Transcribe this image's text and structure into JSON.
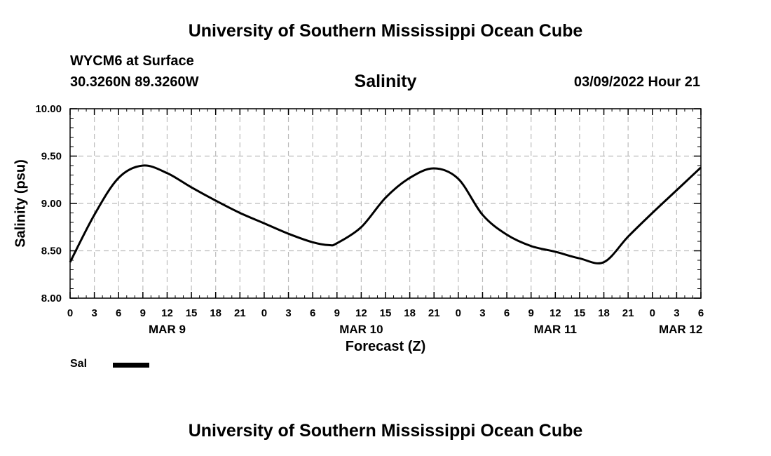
{
  "page": {
    "title_top": "University of Southern Mississippi Ocean Cube",
    "title_bottom": "University of Southern Mississippi Ocean Cube",
    "station": "WYCM6 at Surface",
    "coords": "30.3260N  89.3260W",
    "product": "Salinity",
    "datetime": "03/09/2022 Hour 21"
  },
  "chart_data": {
    "type": "line",
    "title": "Salinity",
    "xlabel": "Forecast (Z)",
    "ylabel": "Salinity (psu)",
    "ylim": [
      8.0,
      10.0
    ],
    "xlim": [
      0,
      78
    ],
    "x_unit": "hours from 03/09/2022 00Z",
    "y_ticks": [
      "8.00",
      "8.50",
      "9.00",
      "9.50",
      "10.00"
    ],
    "x_tick_labels": [
      "0",
      "3",
      "6",
      "9",
      "12",
      "15",
      "18",
      "21",
      "0",
      "3",
      "6",
      "9",
      "12",
      "15",
      "18",
      "21",
      "0",
      "3",
      "6",
      "9",
      "12",
      "15",
      "18",
      "21",
      "0",
      "3",
      "6"
    ],
    "date_labels": [
      {
        "label": "MAR 9",
        "hour": 12
      },
      {
        "label": "MAR 10",
        "hour": 36
      },
      {
        "label": "MAR 11",
        "hour": 60
      },
      {
        "label": "MAR 12",
        "hour": 75.5
      }
    ],
    "grid": true,
    "legend": [
      {
        "name": "Sal",
        "color": "#000000"
      }
    ],
    "series": [
      {
        "name": "Sal",
        "color": "#000000",
        "x": [
          0,
          3,
          6,
          9,
          12,
          15,
          18,
          21,
          24,
          27,
          30,
          32,
          33,
          36,
          39,
          42,
          45,
          48,
          51,
          54,
          57,
          60,
          63,
          66,
          69,
          72,
          75,
          78
        ],
        "y": [
          8.38,
          8.88,
          9.27,
          9.4,
          9.32,
          9.17,
          9.03,
          8.9,
          8.79,
          8.68,
          8.59,
          8.56,
          8.58,
          8.75,
          9.06,
          9.27,
          9.37,
          9.26,
          8.88,
          8.67,
          8.55,
          8.49,
          8.42,
          8.38,
          8.65,
          8.9,
          9.14,
          9.38
        ]
      }
    ]
  }
}
